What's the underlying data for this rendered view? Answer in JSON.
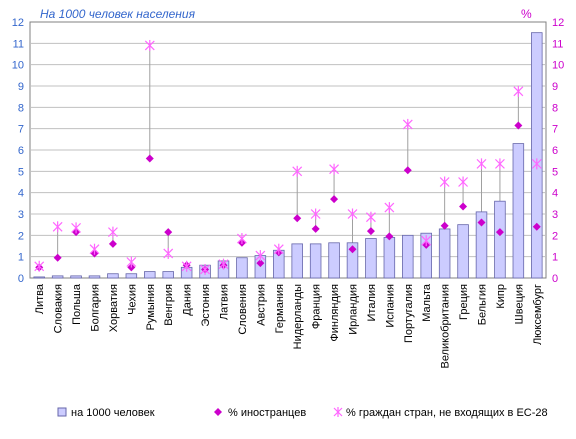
{
  "chart_data": {
    "type": "bar",
    "ylabel_left": "На 1000 человек населения",
    "ylabel_right": "%",
    "ylim_left": [
      0,
      12
    ],
    "ylim_right": [
      0,
      12
    ],
    "yticks": [
      0,
      1,
      2,
      3,
      4,
      5,
      6,
      7,
      8,
      9,
      10,
      11,
      12
    ],
    "grid": true,
    "legend_position": "bottom",
    "categories": [
      "Литва",
      "Словакия",
      "Польша",
      "Болгария",
      "Хорватия",
      "Чехия",
      "Румыния",
      "Венгрия",
      "Дания",
      "Эстония",
      "Латвия",
      "Словения",
      "Австрия",
      "Германия",
      "Нидерланды",
      "Франция",
      "Финляндия",
      "Ирландия",
      "Италия",
      "Испания",
      "Португалия",
      "Мальта",
      "Великобритания",
      "Греция",
      "Бельгия",
      "Кипр",
      "Швеция",
      "Люксембург"
    ],
    "series": [
      {
        "name": "на 1000 человек",
        "kind": "bar",
        "axis": "left",
        "color": "#ccccff",
        "values": [
          0.05,
          0.1,
          0.1,
          0.1,
          0.2,
          0.2,
          0.3,
          0.3,
          0.5,
          0.6,
          0.8,
          0.95,
          1.05,
          1.3,
          1.6,
          1.6,
          1.65,
          1.65,
          1.85,
          1.9,
          2.0,
          2.1,
          2.3,
          2.5,
          3.1,
          3.6,
          6.3,
          11.5
        ]
      },
      {
        "name": "% иностранцев",
        "kind": "marker-diamond",
        "axis": "right",
        "color": "#cc00cc",
        "values": [
          0.5,
          0.95,
          2.15,
          1.15,
          1.6,
          0.5,
          5.6,
          2.15,
          0.6,
          0.4,
          0.6,
          1.65,
          0.7,
          1.2,
          2.8,
          2.3,
          3.7,
          1.35,
          2.2,
          1.95,
          5.05,
          1.55,
          2.45,
          3.35,
          2.6,
          2.15,
          7.15,
          2.4
        ]
      },
      {
        "name": "% граждан стран, не входящих в ЕС-28",
        "kind": "marker-asterisk",
        "axis": "right",
        "color": "#ff66ff",
        "values": [
          0.55,
          2.4,
          2.35,
          1.35,
          2.15,
          0.75,
          10.9,
          1.15,
          0.55,
          0.4,
          0.65,
          1.85,
          1.05,
          1.35,
          5.0,
          3.0,
          5.1,
          3.0,
          2.85,
          3.3,
          7.2,
          1.75,
          4.5,
          4.5,
          5.35,
          5.35,
          8.75,
          5.35
        ]
      }
    ]
  }
}
